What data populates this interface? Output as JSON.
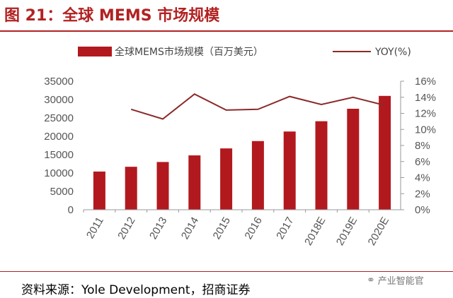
{
  "figure_title": "图 21：全球 MEMS 市场规模",
  "source": "资料来源：Yole Development，招商证券",
  "watermark": {
    "icon": "wechat-icon",
    "text": "产业智能官"
  },
  "colors": {
    "bar": "#b2191e",
    "line": "#8b2a2a",
    "title": "#b22222"
  },
  "chart_data": {
    "type": "bar",
    "title": "",
    "categories": [
      "2011",
      "2012",
      "2013",
      "2014",
      "2015",
      "2016",
      "2017",
      "2018E",
      "2019E",
      "2020E"
    ],
    "series": [
      {
        "name": "全球MEMS市场规模（百万美元）",
        "type": "bar",
        "axis": "left",
        "values": [
          10400,
          11700,
          13000,
          14800,
          16700,
          18700,
          21300,
          24100,
          27500,
          31000
        ]
      },
      {
        "name": "YOY(%)",
        "type": "line",
        "axis": "right",
        "values": [
          null,
          12.5,
          11.3,
          14.4,
          12.4,
          12.5,
          14.1,
          13.1,
          14.0,
          13.0
        ]
      }
    ],
    "ylim_left": [
      0,
      35000
    ],
    "yticks_left": [
      "0",
      "5000",
      "10000",
      "15000",
      "20000",
      "25000",
      "30000",
      "35000"
    ],
    "ylim_right": [
      0,
      16
    ],
    "yticks_right": [
      "0%",
      "2%",
      "4%",
      "6%",
      "8%",
      "10%",
      "12%",
      "14%",
      "16%"
    ],
    "legend": {
      "position": "top",
      "bar_label": "全球MEMS市场规模（百万美元）",
      "line_label": "YOY(%)"
    },
    "grid": false
  }
}
